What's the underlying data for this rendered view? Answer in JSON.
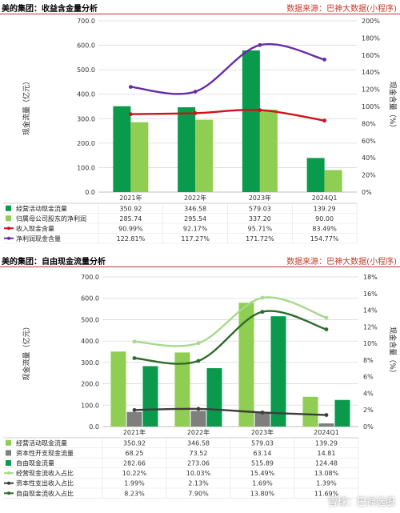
{
  "colors": {
    "dark_green": "#0a9a4c",
    "light_green": "#8fce52",
    "red": "#d0111a",
    "purple": "#6a2aa6",
    "gray": "#7f7f7f",
    "pale_green": "#a6d98c",
    "dark_olive": "#2f6b2a",
    "charcoal": "#3d3d3d",
    "header_rule": "#b23a3a",
    "source_text": "#c0392b"
  },
  "chart1": {
    "title": "美的集团：收益含金量分析",
    "source": "数据来源：巴神大数据(小程序)",
    "ylabel_left": "现金流量（亿元）",
    "ylabel_right": "现金含量（%）",
    "left_ticks": [
      "0.0",
      "100.0",
      "200.0",
      "300.0",
      "400.0",
      "500.0",
      "600.0",
      "700.0"
    ],
    "right_ticks": [
      "0%",
      "20%",
      "40%",
      "60%",
      "80%",
      "100%",
      "120%",
      "140%",
      "160%",
      "180%",
      "200%"
    ]
  },
  "chart2": {
    "title": "美的集团：自由现金流量分析",
    "source": "数据来源：巴神大数据(小程序)",
    "ylabel_left": "现金流量（亿元）",
    "ylabel_right": "现金含量（%）",
    "left_ticks": [
      "0.0",
      "100.0",
      "200.0",
      "300.0",
      "400.0",
      "500.0",
      "600.0",
      "700.0"
    ],
    "right_ticks": [
      "0%",
      "2%",
      "4%",
      "6%",
      "8%",
      "10%",
      "12%",
      "14%",
      "16%",
      "18%"
    ]
  },
  "watermark": "雪球：巴神选股",
  "chart_data": [
    {
      "type": "bar",
      "title": "美的集团：收益含金量分析",
      "categories": [
        "2021年",
        "2022年",
        "2023年",
        "2024Q1"
      ],
      "ylabel": "现金流量（亿元）",
      "ylabel_right": "现金含量（%）",
      "ylim": [
        0,
        700
      ],
      "ylim_right": [
        0,
        200
      ],
      "series": [
        {
          "name": "经营活动现金流量",
          "kind": "bar",
          "axis": "left",
          "color": "#0a9a4c",
          "values": [
            350.92,
            346.58,
            579.03,
            139.29
          ],
          "labels": [
            "350.92",
            "346.58",
            "579.03",
            "139.29"
          ]
        },
        {
          "name": "归属母公司股东的净利润",
          "kind": "bar",
          "axis": "left",
          "color": "#8fce52",
          "values": [
            285.74,
            295.54,
            337.2,
            90.0
          ],
          "labels": [
            "285.74",
            "295.54",
            "337.20",
            "90.00"
          ]
        },
        {
          "name": "收入现金含量",
          "kind": "line",
          "axis": "right",
          "color": "#d0111a",
          "values": [
            90.99,
            92.17,
            95.71,
            83.49
          ],
          "labels": [
            "90.99%",
            "92.17%",
            "95.71%",
            "83.49%"
          ]
        },
        {
          "name": "净利润现金含量",
          "kind": "line",
          "axis": "right",
          "color": "#6a2aa6",
          "values": [
            122.81,
            117.27,
            171.72,
            154.77
          ],
          "labels": [
            "122.81%",
            "117.27%",
            "171.72%",
            "154.77%"
          ]
        }
      ]
    },
    {
      "type": "bar",
      "title": "美的集团：自由现金流量分析",
      "categories": [
        "2021年",
        "2022年",
        "2023年",
        "2024Q1"
      ],
      "ylabel": "现金流量（亿元）",
      "ylabel_right": "现金含量（%）",
      "ylim": [
        0,
        700
      ],
      "ylim_right": [
        0,
        18
      ],
      "series": [
        {
          "name": "经营活动现金流量",
          "kind": "bar",
          "axis": "left",
          "color": "#8fce52",
          "values": [
            350.92,
            346.58,
            579.03,
            139.29
          ],
          "labels": [
            "350.92",
            "346.58",
            "579.03",
            "139.29"
          ]
        },
        {
          "name": "资本性开支现金流量",
          "kind": "bar",
          "axis": "left",
          "color": "#7f7f7f",
          "values": [
            68.25,
            73.52,
            63.14,
            14.81
          ],
          "labels": [
            "68.25",
            "73.52",
            "63.14",
            "14.81"
          ]
        },
        {
          "name": "自由现金流量",
          "kind": "bar",
          "axis": "left",
          "color": "#0a9a4c",
          "values": [
            282.66,
            273.06,
            515.89,
            124.48
          ],
          "labels": [
            "282.66",
            "273.06",
            "515.89",
            "124.48"
          ]
        },
        {
          "name": "经营现金流收入占比",
          "kind": "line",
          "axis": "right",
          "color": "#a6d98c",
          "values": [
            10.22,
            10.03,
            15.49,
            13.08
          ],
          "labels": [
            "10.22%",
            "10.03%",
            "15.49%",
            "13.08%"
          ]
        },
        {
          "name": "资本性支出收入占比",
          "kind": "line",
          "axis": "right",
          "color": "#3d3d3d",
          "values": [
            1.99,
            2.13,
            1.69,
            1.39
          ],
          "labels": [
            "1.99%",
            "2.13%",
            "1.69%",
            "1.39%"
          ]
        },
        {
          "name": "自由现金流收入占比",
          "kind": "line",
          "axis": "right",
          "color": "#2f6b2a",
          "values": [
            8.23,
            7.9,
            13.8,
            11.69
          ],
          "labels": [
            "8.23%",
            "7.90%",
            "13.80%",
            "11.69%"
          ]
        }
      ]
    }
  ]
}
